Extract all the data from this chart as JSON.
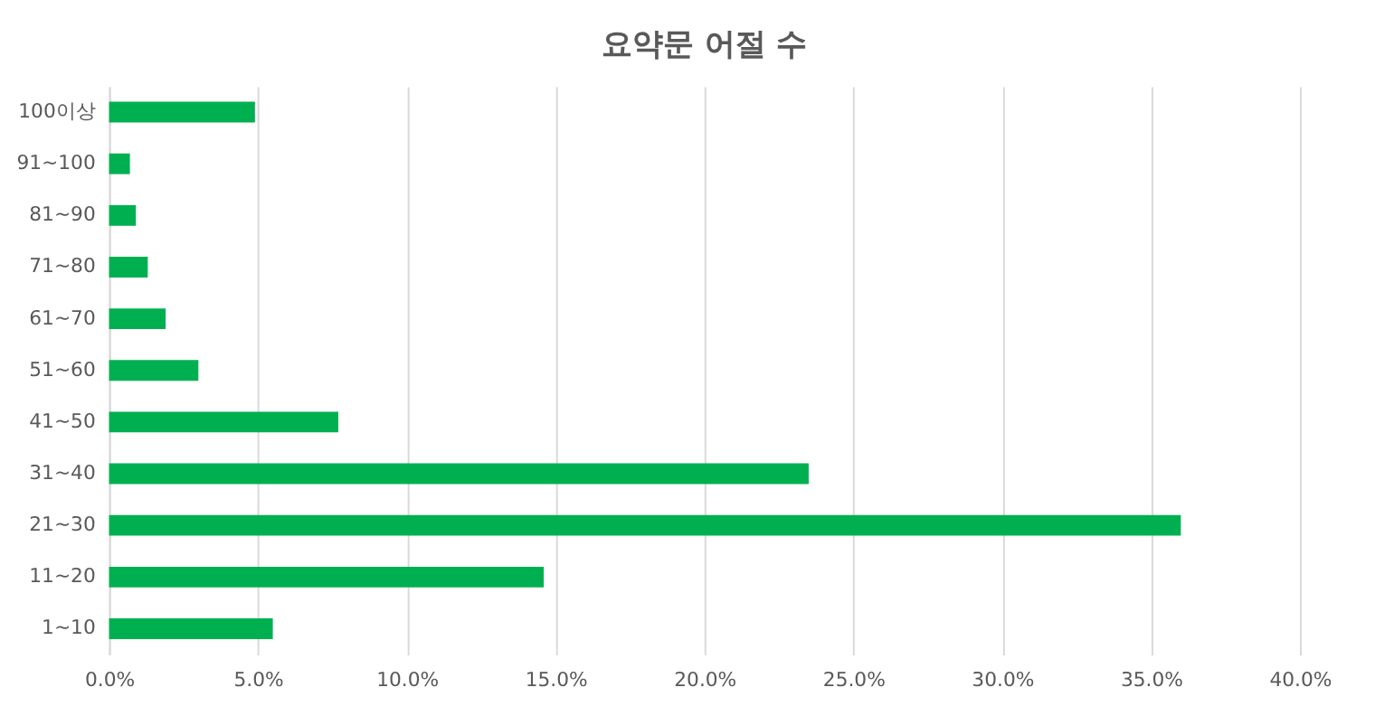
{
  "chart_data": {
    "type": "bar",
    "orientation": "horizontal",
    "title": "요약문 어절 수",
    "categories": [
      "100이상",
      "91~100",
      "81~90",
      "71~80",
      "61~70",
      "51~60",
      "41~50",
      "31~40",
      "21~30",
      "11~20",
      "1~10"
    ],
    "values": [
      4.9,
      0.7,
      0.9,
      1.3,
      1.9,
      3.0,
      7.7,
      23.5,
      36.0,
      14.6,
      5.5
    ],
    "color": "#00b050",
    "xlim": [
      0,
      40
    ],
    "xticks": [
      {
        "value": 0,
        "label": "0.0%"
      },
      {
        "value": 5,
        "label": "5.0%"
      },
      {
        "value": 10,
        "label": "10.0%"
      },
      {
        "value": 15,
        "label": "15.0%"
      },
      {
        "value": 20,
        "label": "20.0%"
      },
      {
        "value": 25,
        "label": "25.0%"
      },
      {
        "value": 30,
        "label": "30.0%"
      },
      {
        "value": 35,
        "label": "35.0%"
      },
      {
        "value": 40,
        "label": "40.0%"
      }
    ],
    "grid": "x"
  }
}
